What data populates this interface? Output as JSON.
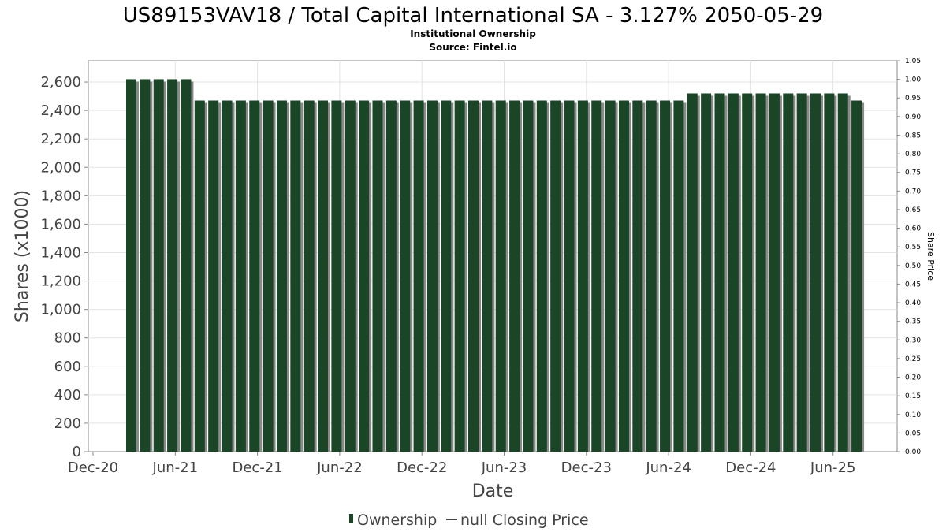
{
  "chart_data": {
    "type": "bar",
    "title": "US89153VAV18 / Total Capital International SA - 3.127% 2050-05-29",
    "subtitle": "Institutional Ownership",
    "source": "Source: Fintel.io",
    "xlabel": "Date",
    "ylabel": "Shares (x1000)",
    "ylabel_right": "Share Price",
    "ylim": [
      0,
      2750
    ],
    "ylim_right": [
      0,
      1.05
    ],
    "yticks": [
      "0",
      "200",
      "400",
      "600",
      "800",
      "1,000",
      "1,200",
      "1,400",
      "1,600",
      "1,800",
      "2,000",
      "2,200",
      "2,400",
      "2,600"
    ],
    "yticks_right": [
      "0.00",
      "0.05",
      "0.10",
      "0.15",
      "0.20",
      "0.25",
      "0.30",
      "0.35",
      "0.40",
      "0.45",
      "0.50",
      "0.55",
      "0.60",
      "0.65",
      "0.70",
      "0.75",
      "0.80",
      "0.85",
      "0.90",
      "0.95",
      "1.00",
      "1.05"
    ],
    "xticks": [
      "Dec-20",
      "Jun-21",
      "Dec-21",
      "Jun-22",
      "Dec-22",
      "Jun-23",
      "Dec-23",
      "Jun-24",
      "Dec-24",
      "Jun-25"
    ],
    "grid": true,
    "colors": {
      "bar": "#1b4527",
      "bar_shadow": "#8a8a8a",
      "grid": "#e3e3e3",
      "axis": "#888888"
    },
    "legend": {
      "position": "bottom",
      "items": [
        {
          "label": "Ownership",
          "marker": "bar"
        },
        {
          "label": "null Closing Price",
          "marker": "line"
        }
      ]
    },
    "series": [
      {
        "name": "Ownership",
        "values": [
          2620,
          2620,
          2620,
          2620,
          2620,
          2470,
          2470,
          2470,
          2470,
          2470,
          2470,
          2470,
          2470,
          2470,
          2470,
          2470,
          2470,
          2470,
          2470,
          2470,
          2470,
          2470,
          2470,
          2470,
          2470,
          2470,
          2470,
          2470,
          2470,
          2470,
          2470,
          2470,
          2470,
          2470,
          2470,
          2470,
          2470,
          2470,
          2470,
          2470,
          2470,
          2520,
          2520,
          2520,
          2520,
          2520,
          2520,
          2520,
          2520,
          2520,
          2520,
          2520,
          2520,
          2470
        ]
      }
    ]
  }
}
